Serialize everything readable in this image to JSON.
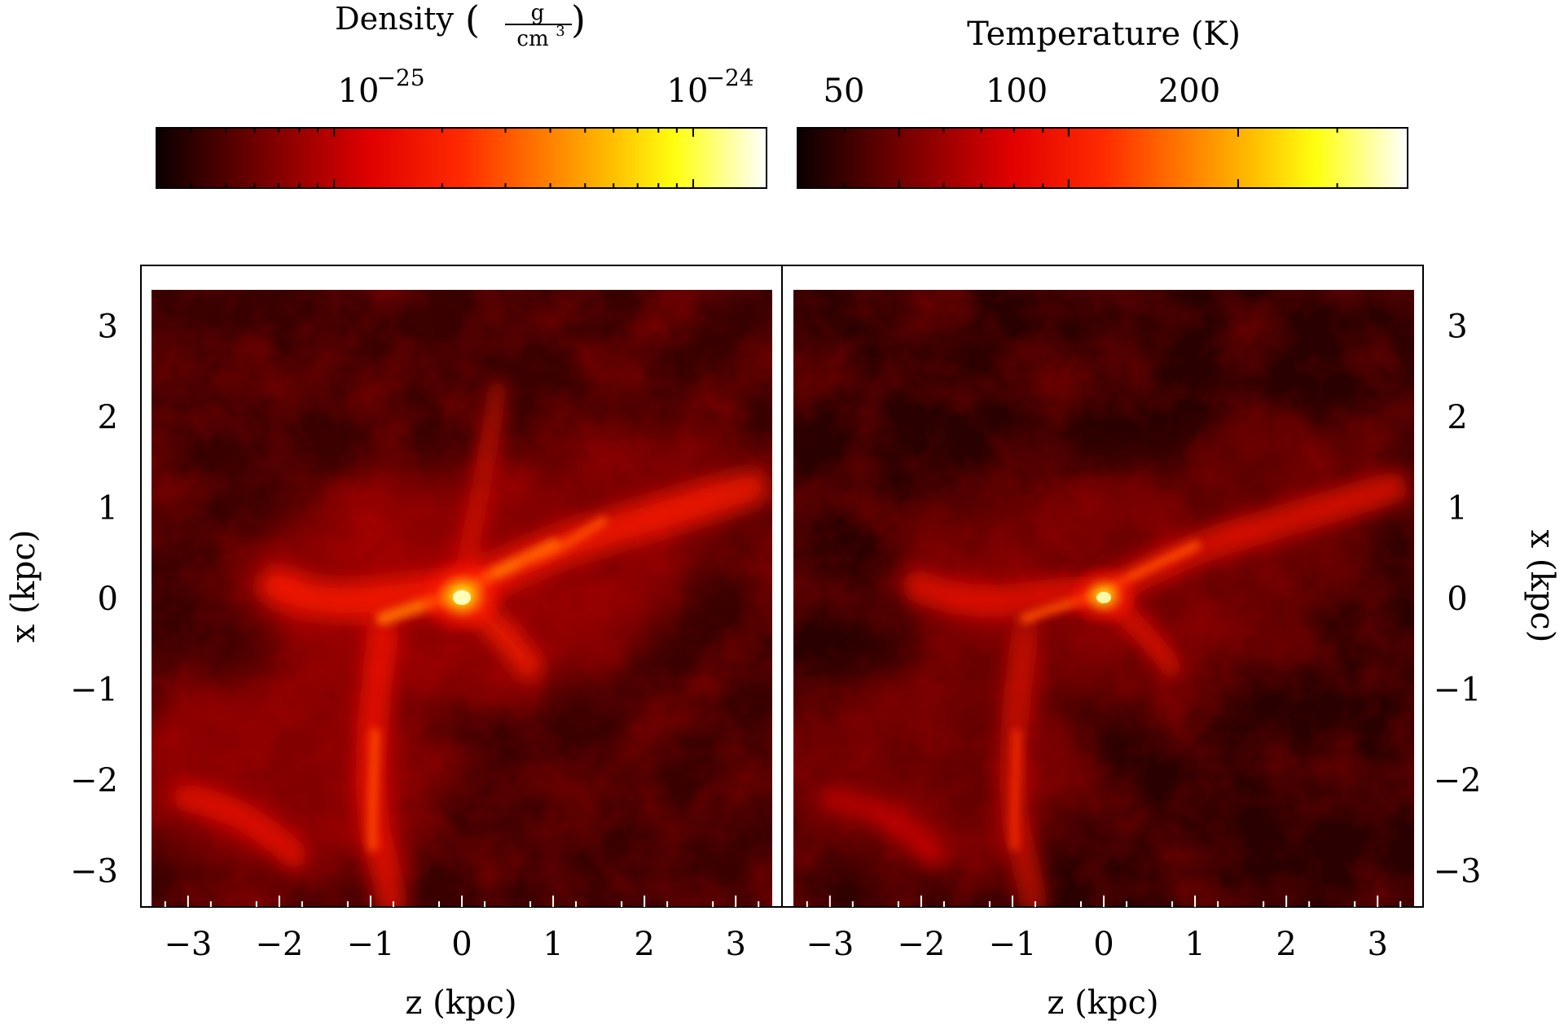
{
  "chart_data": [
    {
      "type": "heatmap",
      "title": "",
      "xlabel": "z (kpc)",
      "ylabel": "x (kpc)",
      "xlim": [
        -3.4,
        3.4
      ],
      "ylim": [
        -3.4,
        3.4
      ],
      "x_ticks": [
        -3,
        -2,
        -1,
        0,
        1,
        2,
        3
      ],
      "y_ticks": [
        -3,
        -2,
        -1,
        0,
        1,
        2,
        3
      ],
      "x_tick_labels": [
        "−3",
        "−2",
        "−1",
        "0",
        "1",
        "2",
        "3"
      ],
      "y_tick_labels": [
        "−3",
        "−2",
        "−1",
        "0",
        "1",
        "2",
        "3"
      ],
      "ytick_side": "left",
      "colormap": "hot",
      "colorbar": {
        "label": "Density",
        "unit_numerator": "g",
        "unit_denominator": "cm",
        "unit_exponent": "3",
        "scale": "log",
        "range": [
          3.2e-26,
          1.6e-24
        ],
        "major_ticks": [
          {
            "value": 1e-25,
            "base": "10",
            "exponent": "−25"
          },
          {
            "value": 1e-24,
            "base": "10",
            "exponent": "−24"
          }
        ],
        "location": "top"
      },
      "features": {
        "peak_location": {
          "z": 0.05,
          "x": -0.15
        },
        "filaments": "bright filament from (z=-1.2,x=-0.5) through center to (z=2.8,x=0.9); branch down to (z=-1.0,x=-3.0)"
      }
    },
    {
      "type": "heatmap",
      "title": "",
      "xlabel": "z (kpc)",
      "ylabel": "x (kpc)",
      "xlim": [
        -3.4,
        3.4
      ],
      "ylim": [
        -3.4,
        3.4
      ],
      "x_ticks": [
        -3,
        -2,
        -1,
        0,
        1,
        2,
        3
      ],
      "y_ticks": [
        -3,
        -2,
        -1,
        0,
        1,
        2,
        3
      ],
      "x_tick_labels": [
        "−3",
        "−2",
        "−1",
        "0",
        "1",
        "2",
        "3"
      ],
      "y_tick_labels": [
        "−3",
        "−2",
        "−1",
        "0",
        "1",
        "2",
        "3"
      ],
      "ytick_side": "right",
      "colormap": "hot",
      "colorbar": {
        "label": "Temperature (K)",
        "scale": "log",
        "range": [
          33,
          400
        ],
        "major_ticks": [
          {
            "value": 50,
            "label": "50"
          },
          {
            "value": 100,
            "label": "100"
          },
          {
            "value": 200,
            "label": "200"
          }
        ],
        "location": "top"
      },
      "features": {
        "peak_location": {
          "z": 0.0,
          "x": -0.15
        },
        "filaments": "same filamentary structure as density, slightly dimmer"
      }
    }
  ]
}
